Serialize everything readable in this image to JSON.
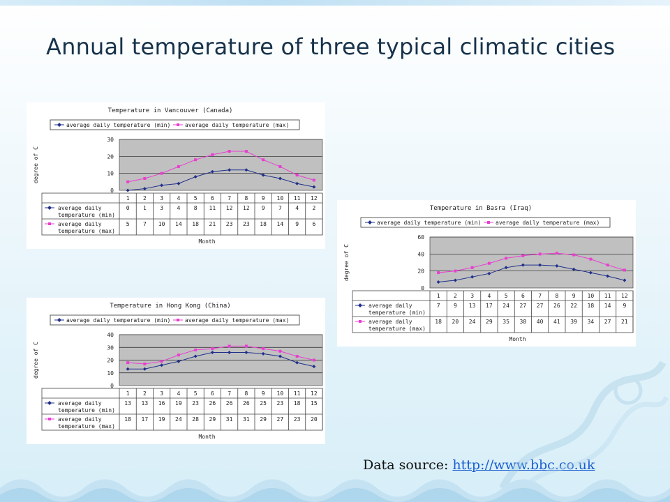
{
  "slide": {
    "title": "Annual temperature of three typical climatic cities",
    "source_label": "Data source: ",
    "source_link": "http://www.bbc.co.uk"
  },
  "colors": {
    "min_series": "#1f2f8a",
    "max_series": "#e83fd0",
    "plot_bg": "#c0c0c0"
  },
  "chart_data": [
    {
      "type": "line",
      "title": "Temperature in Vancouver (Canada)",
      "xlabel": "Month",
      "ylabel": "degree of C",
      "ylim": [
        0,
        30
      ],
      "yticks": [
        0,
        10,
        20,
        30
      ],
      "grid": true,
      "legend": "top",
      "categories": [
        "1",
        "2",
        "3",
        "4",
        "5",
        "6",
        "7",
        "8",
        "9",
        "10",
        "11",
        "12"
      ],
      "series": [
        {
          "name": "average daily temperature (min)",
          "table_label": [
            "average daily",
            "temperature (min)"
          ],
          "values": [
            0,
            1,
            3,
            4,
            8,
            11,
            12,
            12,
            9,
            7,
            4,
            2
          ]
        },
        {
          "name": "average daily temperature (max)",
          "table_label": [
            "average daily",
            "temperature (max)"
          ],
          "values": [
            5,
            7,
            10,
            14,
            18,
            21,
            23,
            23,
            18,
            14,
            9,
            6
          ]
        }
      ]
    },
    {
      "type": "line",
      "title": "Temperature in Hong Kong (China)",
      "xlabel": "Month",
      "ylabel": "degree of C",
      "ylim": [
        0,
        40
      ],
      "yticks": [
        0,
        10,
        20,
        30,
        40
      ],
      "grid": true,
      "legend": "top",
      "categories": [
        "1",
        "2",
        "3",
        "4",
        "5",
        "6",
        "7",
        "8",
        "9",
        "10",
        "11",
        "12"
      ],
      "series": [
        {
          "name": "average daily temperature (min)",
          "table_label": [
            "average daily",
            "temperature (min)"
          ],
          "values": [
            13,
            13,
            16,
            19,
            23,
            26,
            26,
            26,
            25,
            23,
            18,
            15
          ]
        },
        {
          "name": "average daily temperature (max)",
          "table_label": [
            "average daily",
            "temperature (max)"
          ],
          "values": [
            18,
            17,
            19,
            24,
            28,
            29,
            31,
            31,
            29,
            27,
            23,
            20
          ]
        }
      ]
    },
    {
      "type": "line",
      "title": "Temperature in Basra (Iraq)",
      "xlabel": "Month",
      "ylabel": "degree of C",
      "ylim": [
        0,
        60
      ],
      "yticks": [
        0,
        20,
        40,
        60
      ],
      "grid": true,
      "legend": "top",
      "categories": [
        "1",
        "2",
        "3",
        "4",
        "5",
        "6",
        "7",
        "8",
        "9",
        "10",
        "11",
        "12"
      ],
      "series": [
        {
          "name": "average daily temperature (min)",
          "table_label": [
            "average daily",
            "temperature (min)"
          ],
          "values": [
            7,
            9,
            13,
            17,
            24,
            27,
            27,
            26,
            22,
            18,
            14,
            9
          ]
        },
        {
          "name": "average daily temperature (max)",
          "table_label": [
            "average daily",
            "temperature (max)"
          ],
          "values": [
            18,
            20,
            24,
            29,
            35,
            38,
            40,
            41,
            39,
            34,
            27,
            21
          ]
        }
      ]
    }
  ]
}
